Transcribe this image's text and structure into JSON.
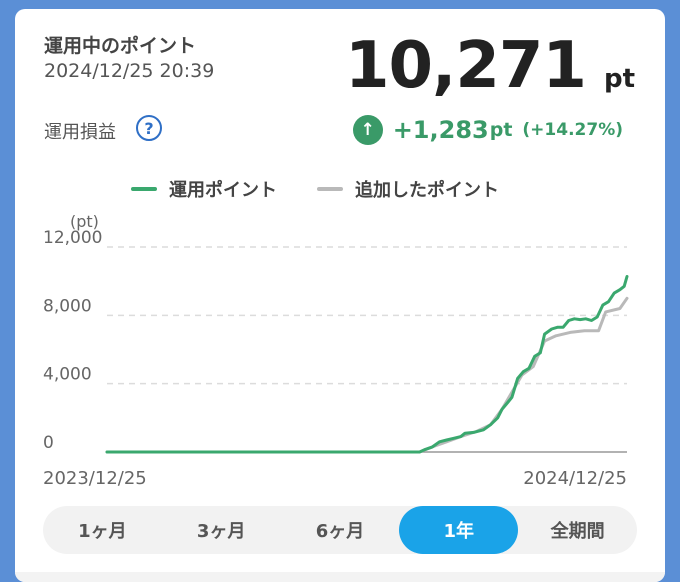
{
  "header": {
    "title": "運用中のポイント",
    "timestamp": "2024/12/25 20:39",
    "total_value": "10,271",
    "total_unit": "pt"
  },
  "profit_loss": {
    "label": "運用損益",
    "help_icon": "question-circle-icon",
    "direction_icon": "arrow-up-circle-icon",
    "value": "+1,283",
    "unit": "pt",
    "percent": "(+14.27%)"
  },
  "colors": {
    "operating": "#3aa86e",
    "added": "#b9b9b9",
    "active_tab": "#1aa3e8"
  },
  "chart_data": {
    "type": "line",
    "legend_position": "top",
    "ylabel": "(pt)",
    "ylim": [
      0,
      12000
    ],
    "yticks": [
      "0",
      "4,000",
      "8,000",
      "12,000"
    ],
    "xticks": [
      "2023/12/25",
      "2024/12/25"
    ],
    "grid": true,
    "series": [
      {
        "name": "運用ポイント",
        "color": "#3aa86e",
        "points": [
          [
            "2023-12-25",
            0
          ],
          [
            "2024-08-01",
            0
          ],
          [
            "2024-08-05",
            150
          ],
          [
            "2024-08-10",
            300
          ],
          [
            "2024-08-15",
            600
          ],
          [
            "2024-08-20",
            700
          ],
          [
            "2024-08-25",
            800
          ],
          [
            "2024-08-30",
            900
          ],
          [
            "2024-09-02",
            1100
          ],
          [
            "2024-09-08",
            1150
          ],
          [
            "2024-09-15",
            1300
          ],
          [
            "2024-09-20",
            1600
          ],
          [
            "2024-09-25",
            2000
          ],
          [
            "2024-09-28",
            2500
          ],
          [
            "2024-10-02",
            2900
          ],
          [
            "2024-10-05",
            3200
          ],
          [
            "2024-10-09",
            4300
          ],
          [
            "2024-10-13",
            4700
          ],
          [
            "2024-10-17",
            4900
          ],
          [
            "2024-10-21",
            5600
          ],
          [
            "2024-10-25",
            5800
          ],
          [
            "2024-10-28",
            6900
          ],
          [
            "2024-11-02",
            7200
          ],
          [
            "2024-11-06",
            7300
          ],
          [
            "2024-11-10",
            7300
          ],
          [
            "2024-11-14",
            7700
          ],
          [
            "2024-11-18",
            7800
          ],
          [
            "2024-11-22",
            7750
          ],
          [
            "2024-11-26",
            7800
          ],
          [
            "2024-11-30",
            7700
          ],
          [
            "2024-12-04",
            7900
          ],
          [
            "2024-12-08",
            8600
          ],
          [
            "2024-12-12",
            8800
          ],
          [
            "2024-12-16",
            9300
          ],
          [
            "2024-12-20",
            9500
          ],
          [
            "2024-12-23",
            9700
          ],
          [
            "2024-12-25",
            10271
          ]
        ]
      },
      {
        "name": "追加したポイント",
        "color": "#b9b9b9",
        "points": [
          [
            "2023-12-25",
            0
          ],
          [
            "2024-08-01",
            0
          ],
          [
            "2024-08-10",
            300
          ],
          [
            "2024-08-20",
            600
          ],
          [
            "2024-08-30",
            900
          ],
          [
            "2024-09-10",
            1200
          ],
          [
            "2024-09-20",
            1600
          ],
          [
            "2024-09-28",
            2500
          ],
          [
            "2024-10-05",
            3500
          ],
          [
            "2024-10-12",
            4500
          ],
          [
            "2024-10-20",
            5000
          ],
          [
            "2024-10-28",
            6500
          ],
          [
            "2024-11-05",
            6800
          ],
          [
            "2024-11-15",
            7000
          ],
          [
            "2024-11-25",
            7100
          ],
          [
            "2024-12-05",
            7100
          ],
          [
            "2024-12-10",
            8200
          ],
          [
            "2024-12-20",
            8400
          ],
          [
            "2024-12-25",
            9000
          ]
        ]
      }
    ]
  },
  "tabs": [
    {
      "label": "1ヶ月",
      "active": false
    },
    {
      "label": "3ヶ月",
      "active": false
    },
    {
      "label": "6ヶ月",
      "active": false
    },
    {
      "label": "1年",
      "active": true
    },
    {
      "label": "全期間",
      "active": false
    }
  ]
}
